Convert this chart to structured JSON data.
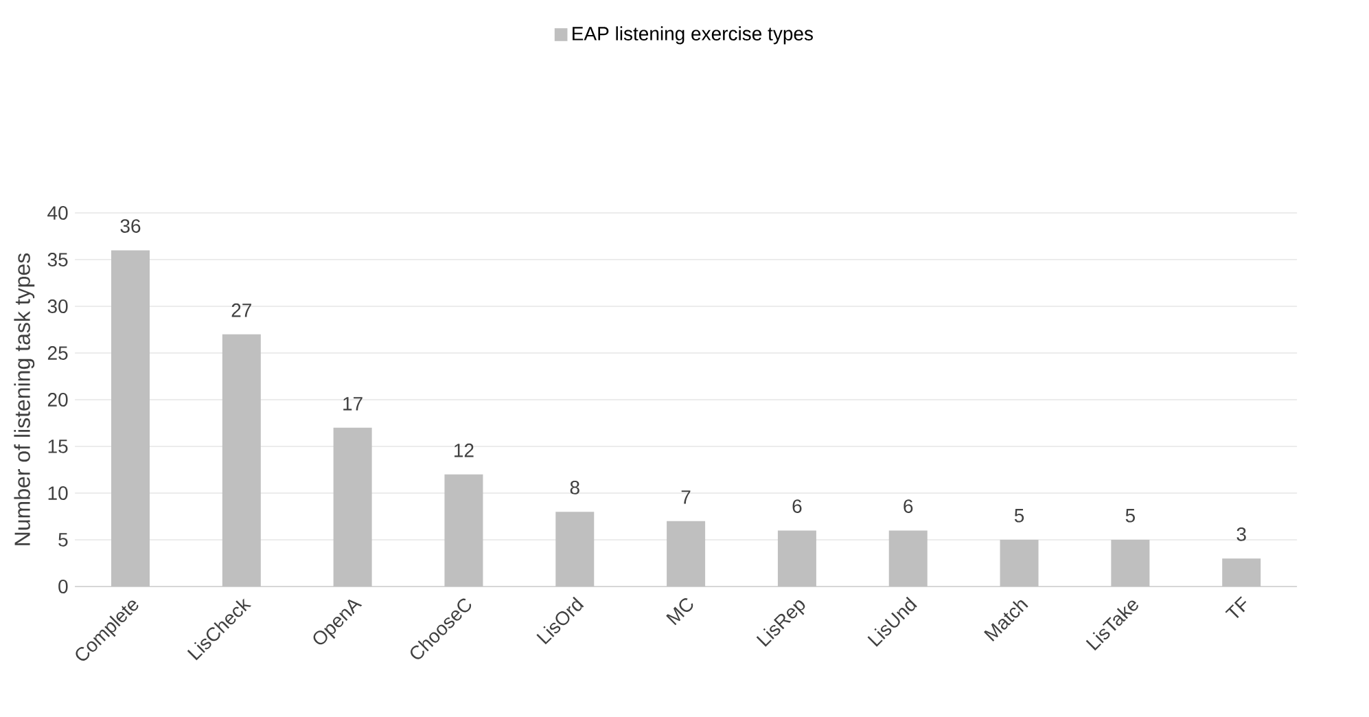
{
  "chart_data": {
    "type": "bar",
    "ylabel": "Number of listening task types",
    "categories": [
      "Complete",
      "LisCheck",
      "OpenA",
      "ChooseC",
      "LisOrd",
      "MC",
      "LisRep",
      "LisUnd",
      "Match",
      "LisTake",
      "TF"
    ],
    "series": [
      {
        "name": "EAP listening exercise types",
        "color": "#bfbfbf",
        "values": [
          36,
          27,
          17,
          12,
          8,
          7,
          6,
          6,
          5,
          5,
          3
        ]
      }
    ],
    "ylim": [
      0,
      40
    ],
    "yticks": [
      0,
      5,
      10,
      15,
      20,
      25,
      30,
      35,
      40
    ],
    "grid": "y",
    "legend": "top",
    "data_labels": true
  }
}
